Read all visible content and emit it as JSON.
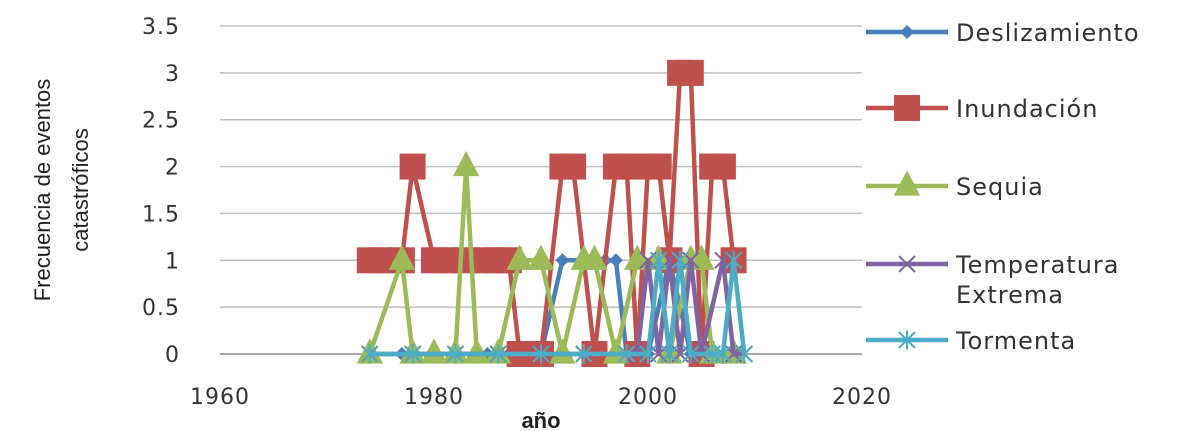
{
  "chart_data": {
    "type": "line",
    "title": "",
    "xlabel": "año",
    "ylabel": "Frecuencia de eventos catastróficos",
    "ylabel_lines": [
      "Frecuencia de eventos",
      "catastróficos"
    ],
    "xlim": [
      1960,
      2020
    ],
    "ylim": [
      0,
      3.5
    ],
    "x_ticks": [
      1960,
      1980,
      2000,
      2020
    ],
    "x_tick_labels": [
      "1960",
      "1980",
      "2000",
      "2020"
    ],
    "y_ticks": [
      0,
      0.5,
      1,
      1.5,
      2,
      2.5,
      3,
      3.5
    ],
    "y_tick_labels": [
      "0",
      "0.5",
      "1",
      "1.5",
      "2",
      "2.5",
      "3",
      "3.5"
    ],
    "grid": "horizontal",
    "legend_position": "right",
    "series": [
      {
        "name": "Deslizamiento",
        "label_lines": [
          "Deslizamiento"
        ],
        "color": "#4a7ebb",
        "marker": "diamond",
        "points": [
          [
            1977,
            0
          ],
          [
            1978,
            0
          ],
          [
            1980,
            0
          ],
          [
            1982,
            0
          ],
          [
            1985,
            0
          ],
          [
            1987,
            0
          ],
          [
            1990,
            0
          ],
          [
            1992,
            1
          ],
          [
            1994,
            1
          ],
          [
            1996,
            1
          ],
          [
            1997,
            1
          ],
          [
            1998,
            0
          ],
          [
            2000,
            0
          ],
          [
            2002,
            1
          ],
          [
            2004,
            0
          ],
          [
            2006,
            0
          ],
          [
            2008,
            0
          ]
        ]
      },
      {
        "name": "Inundación",
        "label_lines": [
          "Inundación"
        ],
        "color": "#c0504d",
        "marker": "square",
        "points": [
          [
            1974,
            1
          ],
          [
            1975,
            1
          ],
          [
            1977,
            1
          ],
          [
            1978,
            2
          ],
          [
            1980,
            1
          ],
          [
            1981,
            1
          ],
          [
            1983,
            1
          ],
          [
            1985,
            1
          ],
          [
            1986,
            1
          ],
          [
            1987,
            1
          ],
          [
            1988,
            0
          ],
          [
            1990,
            0
          ],
          [
            1992,
            2
          ],
          [
            1993,
            2
          ],
          [
            1995,
            0
          ],
          [
            1997,
            2
          ],
          [
            1998,
            2
          ],
          [
            1999,
            0
          ],
          [
            2000,
            2
          ],
          [
            2001,
            2
          ],
          [
            2002,
            1
          ],
          [
            2003,
            3
          ],
          [
            2004,
            3
          ],
          [
            2005,
            0
          ],
          [
            2006,
            2
          ],
          [
            2007,
            2
          ],
          [
            2008,
            1
          ]
        ]
      },
      {
        "name": "Sequia",
        "label_lines": [
          "Sequia"
        ],
        "color": "#9bbb59",
        "marker": "triangle",
        "points": [
          [
            1974,
            0
          ],
          [
            1977,
            1
          ],
          [
            1978,
            0
          ],
          [
            1980,
            0
          ],
          [
            1982,
            0
          ],
          [
            1983,
            2
          ],
          [
            1984,
            0
          ],
          [
            1986,
            0
          ],
          [
            1988,
            1
          ],
          [
            1990,
            1
          ],
          [
            1992,
            0
          ],
          [
            1994,
            1
          ],
          [
            1995,
            1
          ],
          [
            1997,
            0
          ],
          [
            1999,
            1
          ],
          [
            2001,
            1
          ],
          [
            2002,
            0
          ],
          [
            2004,
            1
          ],
          [
            2005,
            1
          ],
          [
            2006,
            0
          ],
          [
            2008,
            0
          ]
        ]
      },
      {
        "name": "Temperatura Extrema",
        "label_lines": [
          "Temperatura",
          "Extrema"
        ],
        "color": "#8064a2",
        "marker": "x",
        "points": [
          [
            1974,
            0
          ],
          [
            1978,
            0
          ],
          [
            1982,
            0
          ],
          [
            1986,
            0
          ],
          [
            1990,
            0
          ],
          [
            1994,
            0
          ],
          [
            1998,
            0
          ],
          [
            1999,
            0
          ],
          [
            2000,
            1
          ],
          [
            2001,
            0
          ],
          [
            2002,
            1
          ],
          [
            2003,
            0
          ],
          [
            2004,
            1
          ],
          [
            2005,
            0
          ],
          [
            2007,
            1
          ],
          [
            2008,
            0
          ],
          [
            2009,
            0
          ]
        ]
      },
      {
        "name": "Tormenta",
        "label_lines": [
          "Tormenta"
        ],
        "color": "#4bacc6",
        "marker": "star",
        "points": [
          [
            1974,
            0
          ],
          [
            1978,
            0
          ],
          [
            1982,
            0
          ],
          [
            1986,
            0
          ],
          [
            1990,
            0
          ],
          [
            1994,
            0
          ],
          [
            1998,
            0
          ],
          [
            2000,
            0
          ],
          [
            2001,
            1
          ],
          [
            2002,
            0
          ],
          [
            2003,
            1
          ],
          [
            2004,
            0
          ],
          [
            2006,
            0
          ],
          [
            2007,
            0
          ],
          [
            2008,
            1
          ],
          [
            2009,
            0
          ]
        ]
      }
    ]
  }
}
